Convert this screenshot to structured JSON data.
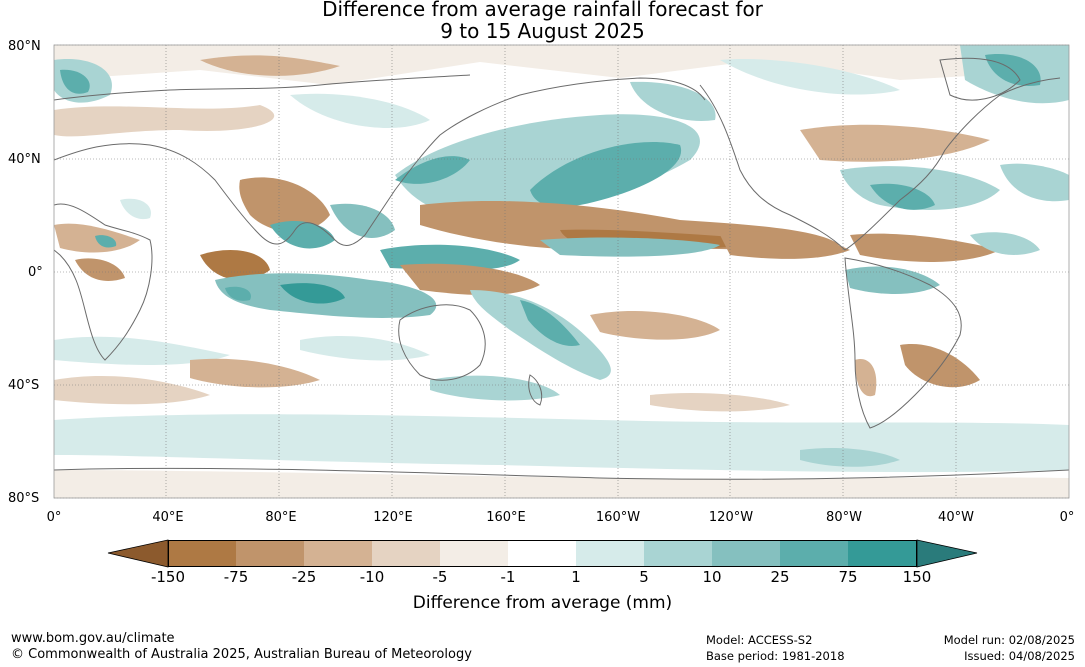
{
  "title_line1": "Difference from average rainfall forecast for",
  "title_line2": "9 to 15 August 2025",
  "lat_labels": [
    "80°N",
    "40°N",
    "0°",
    "40°S",
    "80°S"
  ],
  "lon_labels": [
    "0°",
    "40°E",
    "80°E",
    "120°E",
    "160°E",
    "160°W",
    "120°W",
    "80°W",
    "40°W",
    "0°"
  ],
  "colorbar": {
    "ticks": [
      "-150",
      "-75",
      "-25",
      "-10",
      "-5",
      "-1",
      "1",
      "5",
      "10",
      "25",
      "75",
      "150"
    ],
    "colors": [
      "#8c5a2d",
      "#ae7944",
      "#c0946b",
      "#d4b293",
      "#e5d3c2",
      "#f3ede6",
      "#ffffff",
      "#d6ebea",
      "#a9d4d3",
      "#85c0bf",
      "#5caeac",
      "#349a97",
      "#2a7b7b"
    ],
    "units_label": "Difference from average (mm)"
  },
  "footer": {
    "website": "www.bom.gov.au/climate",
    "copyright": "© Commonwealth of Australia 2025, Australian Bureau of Meteorology",
    "model": "Model: ACCESS-S2",
    "base_period": "Base period: 1981-2018",
    "model_run": "Model run: 02/08/2025",
    "issued": "Issued: 04/08/2025"
  }
}
